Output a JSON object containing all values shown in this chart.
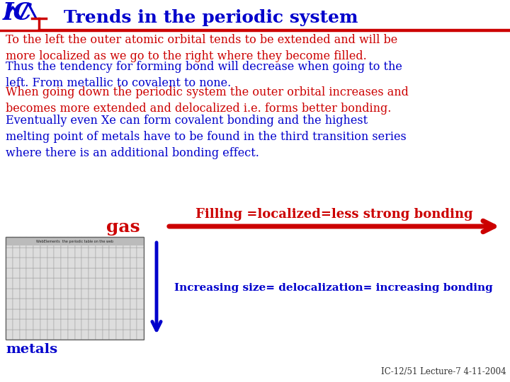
{
  "title": "Trends in the periodic system",
  "title_color": "#0000CC",
  "bg_color": "#FFFFFF",
  "red_color": "#CC0000",
  "blue_color": "#0000CC",
  "paragraph1": "To the left the outer atomic orbital tends to be extended and will be\nmore localized as we go to the right where they become filled.",
  "paragraph1_color": "#CC0000",
  "paragraph2": "Thus the tendency for forming bond will decrease when going to the\nleft. From metallic to covalent to none.",
  "paragraph2_color": "#0000CC",
  "paragraph3": "When going down the periodic system the outer orbital increases and\nbecomes more extended and delocalized i.e. forms better bonding.",
  "paragraph3_color": "#CC0000",
  "paragraph4": "Eventually even Xe can form covalent bonding and the highest\nmelting point of metals have to be found in the third transition series\nwhere there is an additional bonding effect.",
  "paragraph4_color": "#0000CC",
  "label_gas": "gas",
  "label_gas_color": "#CC0000",
  "label_metals": "metals",
  "label_metals_color": "#0000CC",
  "arrow_right_text": "Filling =localized=less strong bonding",
  "arrow_right_color": "#CC0000",
  "arrow_down_text": "Increasing size= delocalization= increasing bonding",
  "arrow_down_color": "#0000CC",
  "footer": "IC-12/51 Lecture-7 4-11-2004",
  "footer_color": "#333333",
  "separator_color": "#CC0000",
  "title_fontsize": 18,
  "body_fontsize": 11.5,
  "small_fontsize": 9
}
